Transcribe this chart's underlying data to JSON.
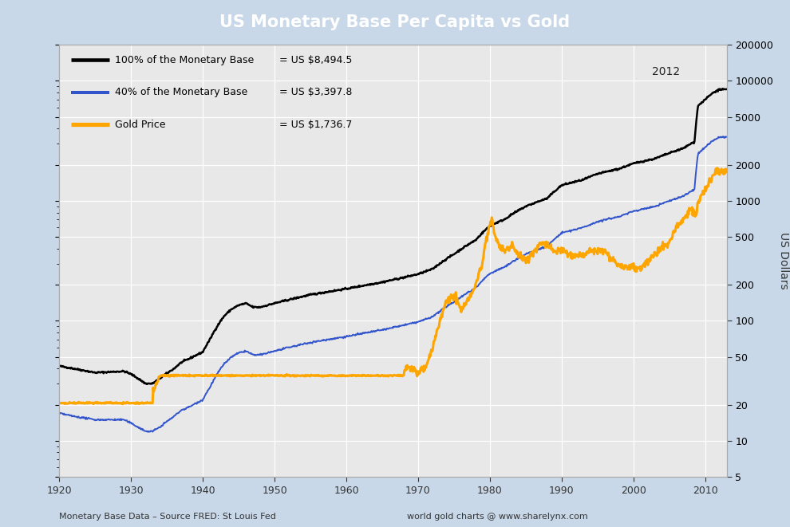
{
  "title": "US Monetary Base Per Capita vs Gold",
  "ylabel": "US Dollars",
  "xlabel_bottom": "Monetary Base Data – Source FRED: St Louis Fed",
  "xlabel_bottom_right": "world gold charts @ www.sharelynx.com",
  "annotation_year": "2012",
  "legend": [
    {
      "label": "100% of the Monetary Base",
      "value": "= US $8,494.5",
      "color": "#000000",
      "lw": 1.8
    },
    {
      "label": "40% of the Monetary Base",
      "value": "= US $3,397.8",
      "color": "#3355cc",
      "lw": 1.4
    },
    {
      "label": "Gold Price",
      "value": "= US $1,736.7",
      "color": "#FFA500",
      "lw": 2.2
    }
  ],
  "bg_color": "#c8d8e8",
  "plot_bg_color": "#e8e8e8",
  "title_bg_color": "#4466bb",
  "title_text_color": "#ffffff",
  "border_color": "#aaaaaa",
  "ylim_log": [
    5,
    20000
  ],
  "xlim": [
    1920,
    2013
  ],
  "yticks": [
    5,
    10,
    20,
    50,
    100,
    200,
    500,
    1000,
    2000,
    5000,
    10000,
    20000
  ],
  "xticks": [
    1920,
    1930,
    1940,
    1950,
    1960,
    1970,
    1980,
    1990,
    2000,
    2010
  ],
  "grid_color": "#ffffff",
  "tick_color": "#333333"
}
